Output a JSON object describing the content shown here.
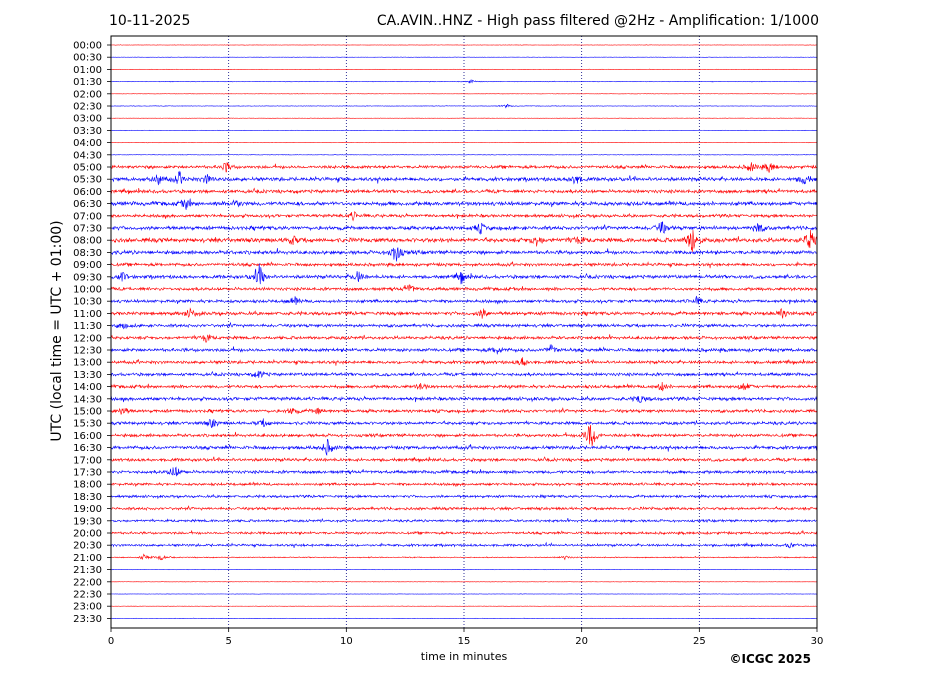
{
  "header": {
    "date": "10-11-2025",
    "title": "CA.AVIN..HNZ - High pass filtered @2Hz - Amplification: 1/1000"
  },
  "footer": {
    "copyright": "©ICGC 2025"
  },
  "colors": {
    "trace_a": "#ff0000",
    "trace_b": "#0000ff",
    "axis": "#000000",
    "grid": "#000080"
  },
  "chart_data": {
    "type": "line",
    "xlabel": "time in minutes",
    "ylabel": "UTC (local time = UTC + 01:00)",
    "xlim": [
      0,
      30
    ],
    "x_ticks": [
      0,
      5,
      10,
      15,
      20,
      25,
      30
    ],
    "x_tick_labels": [
      "0",
      "5",
      "10",
      "15",
      "20",
      "25",
      "30"
    ],
    "vertical_grid_at": [
      5,
      10,
      15,
      20,
      25
    ],
    "grid": true,
    "row_labels": [
      "00:00",
      "00:30",
      "01:00",
      "01:30",
      "02:00",
      "02:30",
      "03:00",
      "03:30",
      "04:00",
      "04:30",
      "05:00",
      "05:30",
      "06:00",
      "06:30",
      "07:00",
      "07:30",
      "08:00",
      "08:30",
      "09:00",
      "09:30",
      "10:00",
      "10:30",
      "11:00",
      "11:30",
      "12:00",
      "12:30",
      "13:00",
      "13:30",
      "14:00",
      "14:30",
      "15:00",
      "15:30",
      "16:00",
      "16:30",
      "17:00",
      "17:30",
      "18:00",
      "18:30",
      "19:00",
      "19:30",
      "20:00",
      "20:30",
      "21:00",
      "21:30",
      "22:00",
      "22:30",
      "23:00",
      "23:30"
    ],
    "row_color_cycle": [
      "trace_a",
      "trace_b"
    ],
    "noise_level_by_row": [
      0.2,
      0.2,
      0.2,
      0.3,
      0.2,
      0.3,
      0.2,
      0.2,
      0.2,
      0.3,
      1.8,
      2.2,
      2.0,
      2.3,
      1.8,
      2.2,
      2.5,
      2.2,
      1.8,
      2.0,
      1.8,
      1.8,
      2.0,
      1.8,
      1.8,
      2.0,
      1.8,
      1.8,
      1.8,
      2.0,
      1.8,
      1.8,
      1.8,
      2.0,
      1.8,
      1.8,
      1.5,
      1.5,
      1.6,
      1.4,
      1.4,
      1.4,
      0.6,
      0.2,
      0.2,
      0.2,
      0.2,
      0.2
    ],
    "events": [
      {
        "row": "01:30",
        "minute": 15.3,
        "amplitude": 2
      },
      {
        "row": "02:30",
        "minute": 16.8,
        "amplitude": 2
      },
      {
        "row": "05:00",
        "minute": 4.9,
        "amplitude": 5
      },
      {
        "row": "05:00",
        "minute": 27.2,
        "amplitude": 5
      },
      {
        "row": "05:00",
        "minute": 28.0,
        "amplitude": 6
      },
      {
        "row": "05:30",
        "minute": 2.0,
        "amplitude": 6
      },
      {
        "row": "05:30",
        "minute": 2.9,
        "amplitude": 6
      },
      {
        "row": "05:30",
        "minute": 4.1,
        "amplitude": 5
      },
      {
        "row": "05:30",
        "minute": 19.7,
        "amplitude": 6
      },
      {
        "row": "05:30",
        "minute": 29.5,
        "amplitude": 6
      },
      {
        "row": "06:30",
        "minute": 3.2,
        "amplitude": 5
      },
      {
        "row": "06:30",
        "minute": 5.3,
        "amplitude": 4
      },
      {
        "row": "07:00",
        "minute": 10.3,
        "amplitude": 4
      },
      {
        "row": "07:30",
        "minute": 15.7,
        "amplitude": 5
      },
      {
        "row": "07:30",
        "minute": 23.4,
        "amplitude": 7
      },
      {
        "row": "07:30",
        "minute": 27.5,
        "amplitude": 6
      },
      {
        "row": "08:00",
        "minute": 7.7,
        "amplitude": 5
      },
      {
        "row": "08:00",
        "minute": 18.1,
        "amplitude": 6
      },
      {
        "row": "08:00",
        "minute": 19.8,
        "amplitude": 5
      },
      {
        "row": "08:00",
        "minute": 24.7,
        "amplitude": 16
      },
      {
        "row": "08:00",
        "minute": 29.7,
        "amplitude": 11
      },
      {
        "row": "08:30",
        "minute": 12.1,
        "amplitude": 11
      },
      {
        "row": "09:30",
        "minute": 0.5,
        "amplitude": 4
      },
      {
        "row": "09:30",
        "minute": 6.3,
        "amplitude": 14
      },
      {
        "row": "09:30",
        "minute": 10.5,
        "amplitude": 6
      },
      {
        "row": "09:30",
        "minute": 14.9,
        "amplitude": 6
      },
      {
        "row": "10:00",
        "minute": 12.7,
        "amplitude": 5
      },
      {
        "row": "10:30",
        "minute": 7.8,
        "amplitude": 4
      },
      {
        "row": "10:30",
        "minute": 24.9,
        "amplitude": 4
      },
      {
        "row": "11:00",
        "minute": 3.4,
        "amplitude": 5
      },
      {
        "row": "11:00",
        "minute": 15.8,
        "amplitude": 5
      },
      {
        "row": "11:00",
        "minute": 28.5,
        "amplitude": 5
      },
      {
        "row": "11:30",
        "minute": 0.5,
        "amplitude": 3
      },
      {
        "row": "12:00",
        "minute": 4.0,
        "amplitude": 5
      },
      {
        "row": "12:30",
        "minute": 16.4,
        "amplitude": 4
      },
      {
        "row": "12:30",
        "minute": 18.7,
        "amplitude": 5
      },
      {
        "row": "13:00",
        "minute": 17.5,
        "amplitude": 5
      },
      {
        "row": "13:30",
        "minute": 6.3,
        "amplitude": 4
      },
      {
        "row": "14:00",
        "minute": 13.2,
        "amplitude": 4
      },
      {
        "row": "14:00",
        "minute": 23.4,
        "amplitude": 5
      },
      {
        "row": "14:00",
        "minute": 26.9,
        "amplitude": 5
      },
      {
        "row": "14:30",
        "minute": 22.5,
        "amplitude": 5
      },
      {
        "row": "15:00",
        "minute": 0.5,
        "amplitude": 5
      },
      {
        "row": "15:00",
        "minute": 7.7,
        "amplitude": 4
      },
      {
        "row": "15:00",
        "minute": 8.8,
        "amplitude": 3
      },
      {
        "row": "15:30",
        "minute": 4.3,
        "amplitude": 5
      },
      {
        "row": "15:30",
        "minute": 6.5,
        "amplitude": 4
      },
      {
        "row": "16:00",
        "minute": 20.4,
        "amplitude": 18
      },
      {
        "row": "16:30",
        "minute": 9.2,
        "amplitude": 8
      },
      {
        "row": "17:30",
        "minute": 2.7,
        "amplitude": 7
      },
      {
        "row": "20:30",
        "minute": 28.9,
        "amplitude": 3
      },
      {
        "row": "21:00",
        "minute": 1.4,
        "amplitude": 3
      },
      {
        "row": "21:00",
        "minute": 2.1,
        "amplitude": 3
      },
      {
        "row": "21:00",
        "minute": 19.3,
        "amplitude": 2
      }
    ]
  }
}
